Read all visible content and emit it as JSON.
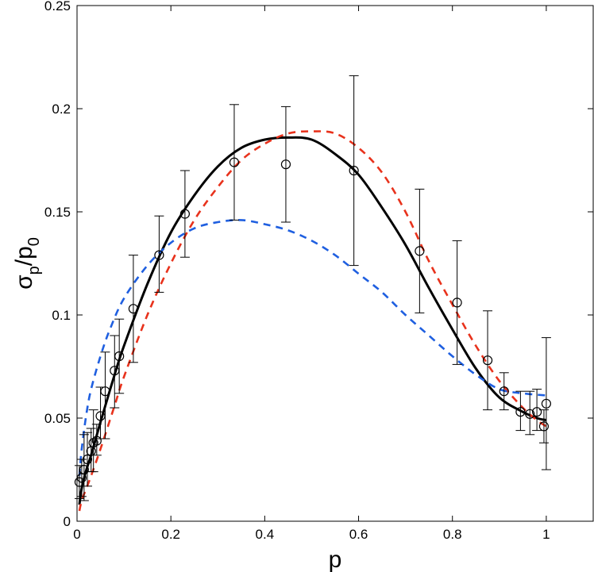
{
  "chart_data": {
    "type": "scatter",
    "title": "",
    "xlabel": "p",
    "ylabel": {
      "base": "σ",
      "sub1": "p",
      "slash": "/p",
      "sub2": "0"
    },
    "xlim": [
      0,
      1.1
    ],
    "ylim": [
      0,
      0.25
    ],
    "xticks": [
      0,
      0.2,
      0.4,
      0.6,
      0.8,
      1
    ],
    "xtick_labels": [
      "0",
      "0.2",
      "0.4",
      "0.6",
      "0.8",
      "1"
    ],
    "yticks": [
      0,
      0.05,
      0.1,
      0.15,
      0.2,
      0.25
    ],
    "ytick_labels": [
      "0",
      "0.05",
      "0.1",
      "0.15",
      "0.2",
      "0.25"
    ],
    "grid": false,
    "legend": "none",
    "points": [
      {
        "x": 0.005,
        "y": 0.019,
        "lo": 0.011,
        "hi": 0.027
      },
      {
        "x": 0.01,
        "y": 0.021,
        "lo": 0.012,
        "hi": 0.03
      },
      {
        "x": 0.015,
        "y": 0.025,
        "lo": 0.01,
        "hi": 0.042
      },
      {
        "x": 0.022,
        "y": 0.03,
        "lo": 0.017,
        "hi": 0.043
      },
      {
        "x": 0.03,
        "y": 0.034,
        "lo": 0.024,
        "hi": 0.045
      },
      {
        "x": 0.035,
        "y": 0.038,
        "lo": 0.024,
        "hi": 0.054
      },
      {
        "x": 0.042,
        "y": 0.039,
        "lo": 0.032,
        "hi": 0.047
      },
      {
        "x": 0.05,
        "y": 0.051,
        "lo": 0.04,
        "hi": 0.065
      },
      {
        "x": 0.06,
        "y": 0.063,
        "lo": 0.04,
        "hi": 0.082
      },
      {
        "x": 0.08,
        "y": 0.073,
        "lo": 0.055,
        "hi": 0.09
      },
      {
        "x": 0.09,
        "y": 0.08,
        "lo": 0.062,
        "hi": 0.098
      },
      {
        "x": 0.12,
        "y": 0.103,
        "lo": 0.077,
        "hi": 0.129
      },
      {
        "x": 0.175,
        "y": 0.129,
        "lo": 0.111,
        "hi": 0.148
      },
      {
        "x": 0.23,
        "y": 0.149,
        "lo": 0.128,
        "hi": 0.17
      },
      {
        "x": 0.335,
        "y": 0.174,
        "lo": 0.146,
        "hi": 0.202
      },
      {
        "x": 0.445,
        "y": 0.173,
        "lo": 0.145,
        "hi": 0.201
      },
      {
        "x": 0.59,
        "y": 0.17,
        "lo": 0.124,
        "hi": 0.216
      },
      {
        "x": 0.73,
        "y": 0.131,
        "lo": 0.101,
        "hi": 0.161
      },
      {
        "x": 0.81,
        "y": 0.106,
        "lo": 0.076,
        "hi": 0.136
      },
      {
        "x": 0.875,
        "y": 0.078,
        "lo": 0.054,
        "hi": 0.102
      },
      {
        "x": 0.91,
        "y": 0.063,
        "lo": 0.054,
        "hi": 0.072
      },
      {
        "x": 0.945,
        "y": 0.053,
        "lo": 0.044,
        "hi": 0.063
      },
      {
        "x": 0.965,
        "y": 0.052,
        "lo": 0.042,
        "hi": 0.063
      },
      {
        "x": 0.98,
        "y": 0.053,
        "lo": 0.044,
        "hi": 0.064
      },
      {
        "x": 0.995,
        "y": 0.046,
        "lo": 0.038,
        "hi": 0.054
      },
      {
        "x": 1.0,
        "y": 0.057,
        "lo": 0.025,
        "hi": 0.089
      }
    ],
    "series": [
      {
        "color": "#000000",
        "dash": "solid",
        "x": [
          0.005,
          0.01,
          0.02,
          0.03,
          0.05,
          0.08,
          0.1,
          0.15,
          0.2,
          0.25,
          0.3,
          0.35,
          0.4,
          0.45,
          0.5,
          0.55,
          0.6,
          0.65,
          0.7,
          0.75,
          0.8,
          0.85,
          0.9,
          0.95,
          0.98,
          1.0
        ],
        "y": [
          0.008,
          0.016,
          0.025,
          0.032,
          0.048,
          0.071,
          0.085,
          0.115,
          0.14,
          0.158,
          0.172,
          0.181,
          0.185,
          0.186,
          0.185,
          0.178,
          0.168,
          0.152,
          0.134,
          0.113,
          0.093,
          0.074,
          0.06,
          0.053,
          0.05,
          0.049
        ]
      },
      {
        "color": "#e8321c",
        "dash": "dashed",
        "x": [
          0.005,
          0.01,
          0.02,
          0.03,
          0.05,
          0.08,
          0.1,
          0.15,
          0.2,
          0.25,
          0.3,
          0.35,
          0.4,
          0.45,
          0.5,
          0.55,
          0.6,
          0.65,
          0.7,
          0.75,
          0.8,
          0.85,
          0.9,
          0.95,
          0.98,
          1.0
        ],
        "y": [
          0.005,
          0.01,
          0.016,
          0.022,
          0.035,
          0.056,
          0.07,
          0.1,
          0.125,
          0.146,
          0.162,
          0.175,
          0.183,
          0.188,
          0.189,
          0.188,
          0.181,
          0.169,
          0.15,
          0.126,
          0.105,
          0.085,
          0.068,
          0.055,
          0.049,
          0.046
        ]
      },
      {
        "color": "#1f5fe0",
        "dash": "dashed",
        "x": [
          0.005,
          0.01,
          0.02,
          0.03,
          0.05,
          0.07,
          0.1,
          0.15,
          0.2,
          0.25,
          0.3,
          0.35,
          0.4,
          0.45,
          0.5,
          0.55,
          0.6,
          0.65,
          0.7,
          0.75,
          0.8,
          0.85,
          0.9,
          0.95,
          1.0
        ],
        "y": [
          0.022,
          0.035,
          0.052,
          0.064,
          0.08,
          0.093,
          0.108,
          0.124,
          0.135,
          0.142,
          0.145,
          0.146,
          0.144,
          0.141,
          0.136,
          0.129,
          0.12,
          0.111,
          0.1,
          0.09,
          0.08,
          0.071,
          0.064,
          0.062,
          0.061
        ]
      }
    ]
  }
}
